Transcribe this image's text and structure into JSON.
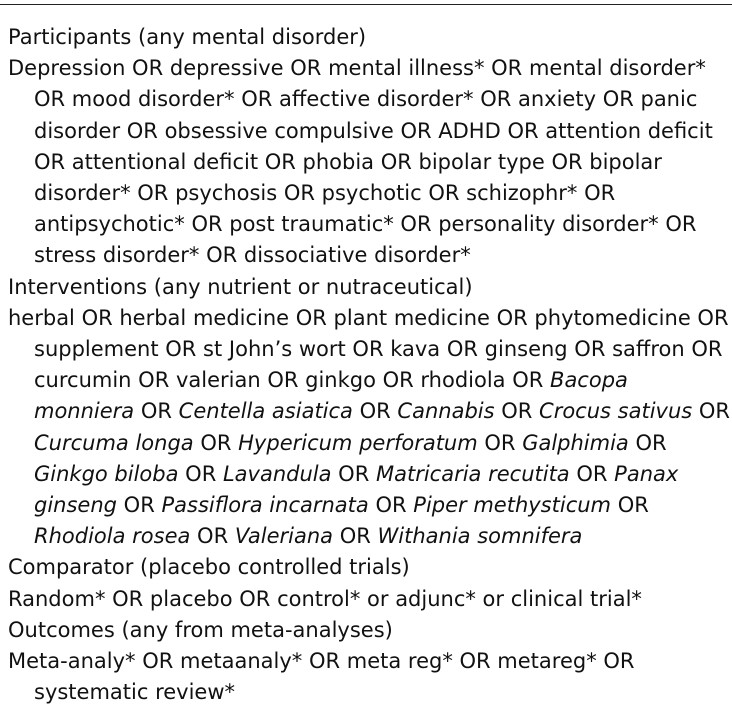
{
  "sections": [
    {
      "heading": "Participants (any mental disorder)",
      "terms": [
        {
          "t": "Depression OR depressive OR mental illness* OR mental disorder* OR mood disorder* OR affective disorder* OR anxiety OR panic disorder OR obsessive compulsive OR ADHD OR attention deficit OR attentional deficit OR phobia OR bipolar type OR bipolar disorder* OR psychosis OR psychotic OR schizophr* OR antipsychotic* OR post traumatic* OR personality disorder* OR stress disorder* OR dissociative disorder*",
          "i": false
        }
      ]
    },
    {
      "heading": "Interventions (any nutrient or nutraceutical)",
      "terms": [
        {
          "t": "herbal OR herbal medicine OR plant medicine OR phytomedicine OR supplement OR st John’s wort OR kava OR ginseng OR saffron OR curcumin OR valerian OR ginkgo OR rhodiola OR ",
          "i": false
        },
        {
          "t": "Bacopa monniera",
          "i": true
        },
        {
          "t": " OR ",
          "i": false
        },
        {
          "t": "Centella asiatica",
          "i": true
        },
        {
          "t": " OR ",
          "i": false
        },
        {
          "t": "Cannabis",
          "i": true
        },
        {
          "t": " OR ",
          "i": false
        },
        {
          "t": "Crocus sativus",
          "i": true
        },
        {
          "t": " OR ",
          "i": false
        },
        {
          "t": "Curcuma longa",
          "i": true
        },
        {
          "t": " OR ",
          "i": false
        },
        {
          "t": "Hypericum perforatum",
          "i": true
        },
        {
          "t": " OR ",
          "i": false
        },
        {
          "t": "Galphimia",
          "i": true
        },
        {
          "t": " OR ",
          "i": false
        },
        {
          "t": "Ginkgo biloba",
          "i": true
        },
        {
          "t": " OR ",
          "i": false
        },
        {
          "t": "Lavandula",
          "i": true
        },
        {
          "t": " OR ",
          "i": false
        },
        {
          "t": "Matricaria recutita",
          "i": true
        },
        {
          "t": " OR ",
          "i": false
        },
        {
          "t": "Panax ginseng",
          "i": true
        },
        {
          "t": " OR ",
          "i": false
        },
        {
          "t": "Passiflora incarnata",
          "i": true
        },
        {
          "t": " OR ",
          "i": false
        },
        {
          "t": "Piper methysticum",
          "i": true
        },
        {
          "t": " OR ",
          "i": false
        },
        {
          "t": "Rhodiola rosea",
          "i": true
        },
        {
          "t": " OR ",
          "i": false
        },
        {
          "t": "Valeriana",
          "i": true
        },
        {
          "t": " OR ",
          "i": false
        },
        {
          "t": "Withania somnifera",
          "i": true
        }
      ]
    },
    {
      "heading": "Comparator (placebo controlled trials)",
      "terms": [
        {
          "t": "Random* OR placebo OR control* or adjunc* or clinical trial*",
          "i": false
        }
      ]
    },
    {
      "heading": "Outcomes (any from meta-analyses)",
      "terms": [
        {
          "t": "Meta-analy* OR metaanaly* OR meta reg* OR metareg* OR systematic review*",
          "i": false
        }
      ]
    }
  ]
}
